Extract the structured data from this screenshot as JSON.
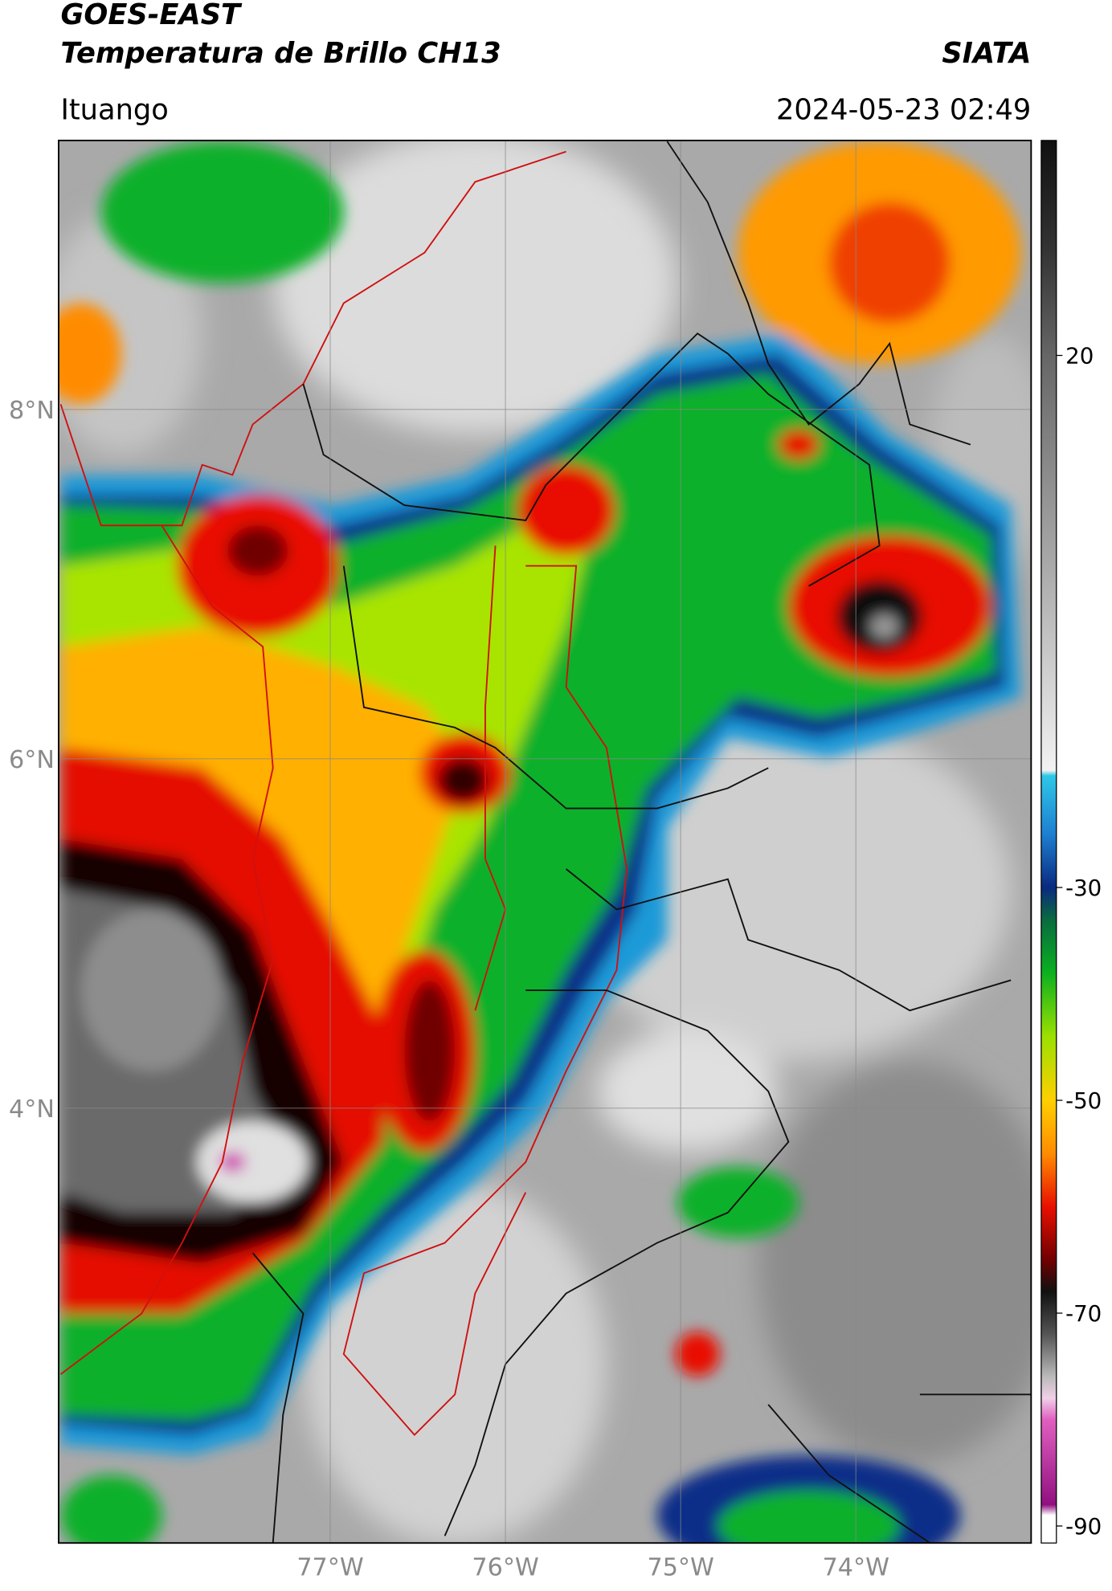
{
  "header": {
    "title": "GOES-EAST",
    "subtitle": "Temperatura de Brillo CH13",
    "source": "SIATA",
    "location": "Ituango",
    "datetime": "2024-05-23 02:49"
  },
  "map": {
    "xlim": [
      -78.55,
      -73.0
    ],
    "ylim": [
      1.51,
      9.54
    ],
    "xticks": [
      {
        "value": -77,
        "label": "77°W"
      },
      {
        "value": -76,
        "label": "76°W"
      },
      {
        "value": -75,
        "label": "75°W"
      },
      {
        "value": -74,
        "label": "74°W"
      }
    ],
    "yticks": [
      {
        "value": 8,
        "label": "8°N"
      },
      {
        "value": 6,
        "label": "6°N"
      },
      {
        "value": 4,
        "label": "4°N"
      }
    ],
    "grid": true
  },
  "colorbar": {
    "lim": [
      -91.6,
      40.2
    ],
    "ticks": [
      20,
      -30,
      -50,
      -70,
      -90
    ],
    "colormap": [
      [
        40,
        "#111111"
      ],
      [
        30,
        "#333333"
      ],
      [
        20,
        "#666666"
      ],
      [
        0,
        "#aaaaaa"
      ],
      [
        -19,
        "#f2f2f2"
      ],
      [
        -19.5,
        "#2ec8e8"
      ],
      [
        -25,
        "#1e7fd0"
      ],
      [
        -30,
        "#0a2a80"
      ],
      [
        -33,
        "#0a6a40"
      ],
      [
        -38,
        "#0bb020"
      ],
      [
        -44,
        "#9be000"
      ],
      [
        -50,
        "#ffd000"
      ],
      [
        -55,
        "#ff8c00"
      ],
      [
        -60,
        "#e81000"
      ],
      [
        -65,
        "#700000"
      ],
      [
        -68,
        "#111111"
      ],
      [
        -72,
        "#555555"
      ],
      [
        -76,
        "#bbbbbb"
      ],
      [
        -78,
        "#f0d0e8"
      ],
      [
        -80,
        "#e060c0"
      ],
      [
        -88,
        "#901080"
      ],
      [
        -89,
        "#ffffff"
      ],
      [
        -91.6,
        "#ffffff"
      ]
    ]
  }
}
